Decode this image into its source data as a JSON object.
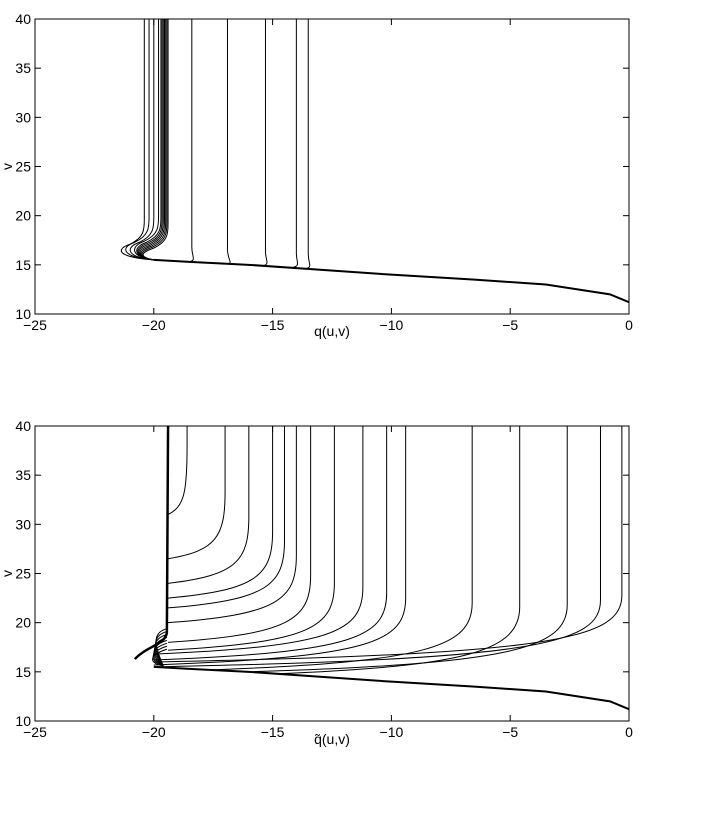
{
  "chart_data": [
    {
      "type": "line",
      "title": "",
      "xlabel": "q(u,v)",
      "ylabel": "v",
      "xlim": [
        -25,
        0
      ],
      "ylim": [
        10,
        40
      ],
      "xticks": [
        -25,
        -20,
        -15,
        -10,
        -5,
        0
      ],
      "yticks": [
        10,
        15,
        20,
        25,
        30,
        35,
        40
      ],
      "xtick_labels": [
        "−25",
        "−20",
        "−15",
        "−10",
        "−5",
        "0"
      ],
      "ytick_labels": [
        "10",
        "15",
        "20",
        "25",
        "30",
        "35",
        "40"
      ],
      "grid": false,
      "legend": "none",
      "line_color": "#000000",
      "common_path": {
        "v": [
          11.2,
          12.0,
          13.0,
          13.5,
          14.0,
          14.5,
          15.0,
          15.3,
          15.5
        ],
        "q": [
          0.0,
          -0.8,
          -3.5,
          -6.5,
          -10.0,
          -13.0,
          -16.0,
          -18.5,
          -20.0
        ]
      },
      "series": [
        {
          "vfinal": -13.5,
          "vsplit": 14.6
        },
        {
          "vfinal": -14.0,
          "vsplit": 14.7
        },
        {
          "vfinal": -15.3,
          "vsplit": 14.9
        },
        {
          "vfinal": -16.9,
          "vsplit": 15.1
        },
        {
          "vfinal": -18.4,
          "vsplit": 15.3
        },
        {
          "vfinal": -19.4,
          "vsplit": 16.2
        },
        {
          "vfinal": -19.45,
          "vsplit": 16.3
        },
        {
          "vfinal": -19.5,
          "vsplit": 16.4
        },
        {
          "vfinal": -19.55,
          "vsplit": 16.5
        },
        {
          "vfinal": -19.6,
          "vsplit": 16.6
        },
        {
          "vfinal": -19.65,
          "vsplit": 16.7
        },
        {
          "vfinal": -19.7,
          "vsplit": 16.8
        },
        {
          "vfinal": -19.8,
          "vsplit": 16.9
        },
        {
          "vfinal": -20.0,
          "vsplit": 16.8
        },
        {
          "vfinal": -20.2,
          "vsplit": 16.8
        },
        {
          "vfinal": -20.4,
          "vsplit": 16.6
        }
      ]
    },
    {
      "type": "line",
      "title": "",
      "xlabel": "q̃(u,v)",
      "ylabel": "v",
      "xlim": [
        -25,
        0
      ],
      "ylim": [
        10,
        40
      ],
      "xticks": [
        -25,
        -20,
        -15,
        -10,
        -5,
        0
      ],
      "yticks": [
        10,
        15,
        20,
        25,
        30,
        35,
        40
      ],
      "xtick_labels": [
        "−25",
        "−20",
        "−15",
        "−10",
        "−5",
        "0"
      ],
      "ytick_labels": [
        "10",
        "15",
        "20",
        "25",
        "30",
        "35",
        "40"
      ],
      "grid": false,
      "legend": "none",
      "line_color": "#000000",
      "common_path": {
        "v": [
          11.2,
          12.0,
          13.0,
          13.5,
          14.0,
          14.5,
          15.0,
          15.3,
          15.5
        ],
        "q": [
          0.0,
          -0.8,
          -3.5,
          -6.5,
          -10.0,
          -13.0,
          -16.0,
          -18.5,
          -20.0
        ]
      },
      "series": [
        {
          "vsplit": 16.0,
          "vfinal": 40,
          "qtop": -0.3
        },
        {
          "vsplit": 15.5,
          "vfinal": 40,
          "qtop": -1.2
        },
        {
          "vsplit": 15.0,
          "vfinal": 40,
          "qtop": -2.6
        },
        {
          "vsplit": 14.8,
          "vfinal": 40,
          "qtop": -4.6
        },
        {
          "vsplit": 15.2,
          "vfinal": 40,
          "qtop": -6.6
        },
        {
          "vsplit": 15.7,
          "vfinal": 40,
          "qtop": -9.4
        },
        {
          "vsplit": 16.2,
          "vfinal": 40,
          "qtop": -10.2
        },
        {
          "vsplit": 16.8,
          "vfinal": 40,
          "qtop": -11.2
        },
        {
          "vsplit": 17.2,
          "vfinal": 40,
          "qtop": -12.4
        },
        {
          "vsplit": 18.0,
          "vfinal": 40,
          "qtop": -13.4
        },
        {
          "vsplit": 20.0,
          "vfinal": 40,
          "qtop": -14.0
        },
        {
          "vsplit": 21.5,
          "vfinal": 40,
          "qtop": -14.5
        },
        {
          "vsplit": 22.5,
          "vfinal": 40,
          "qtop": -15.0
        },
        {
          "vsplit": 24.0,
          "vfinal": 40,
          "qtop": -16.0
        },
        {
          "vsplit": 26.5,
          "vfinal": 40,
          "qtop": -17.0
        },
        {
          "vsplit": 31.0,
          "vfinal": 40,
          "qtop": -18.6
        }
      ]
    }
  ]
}
